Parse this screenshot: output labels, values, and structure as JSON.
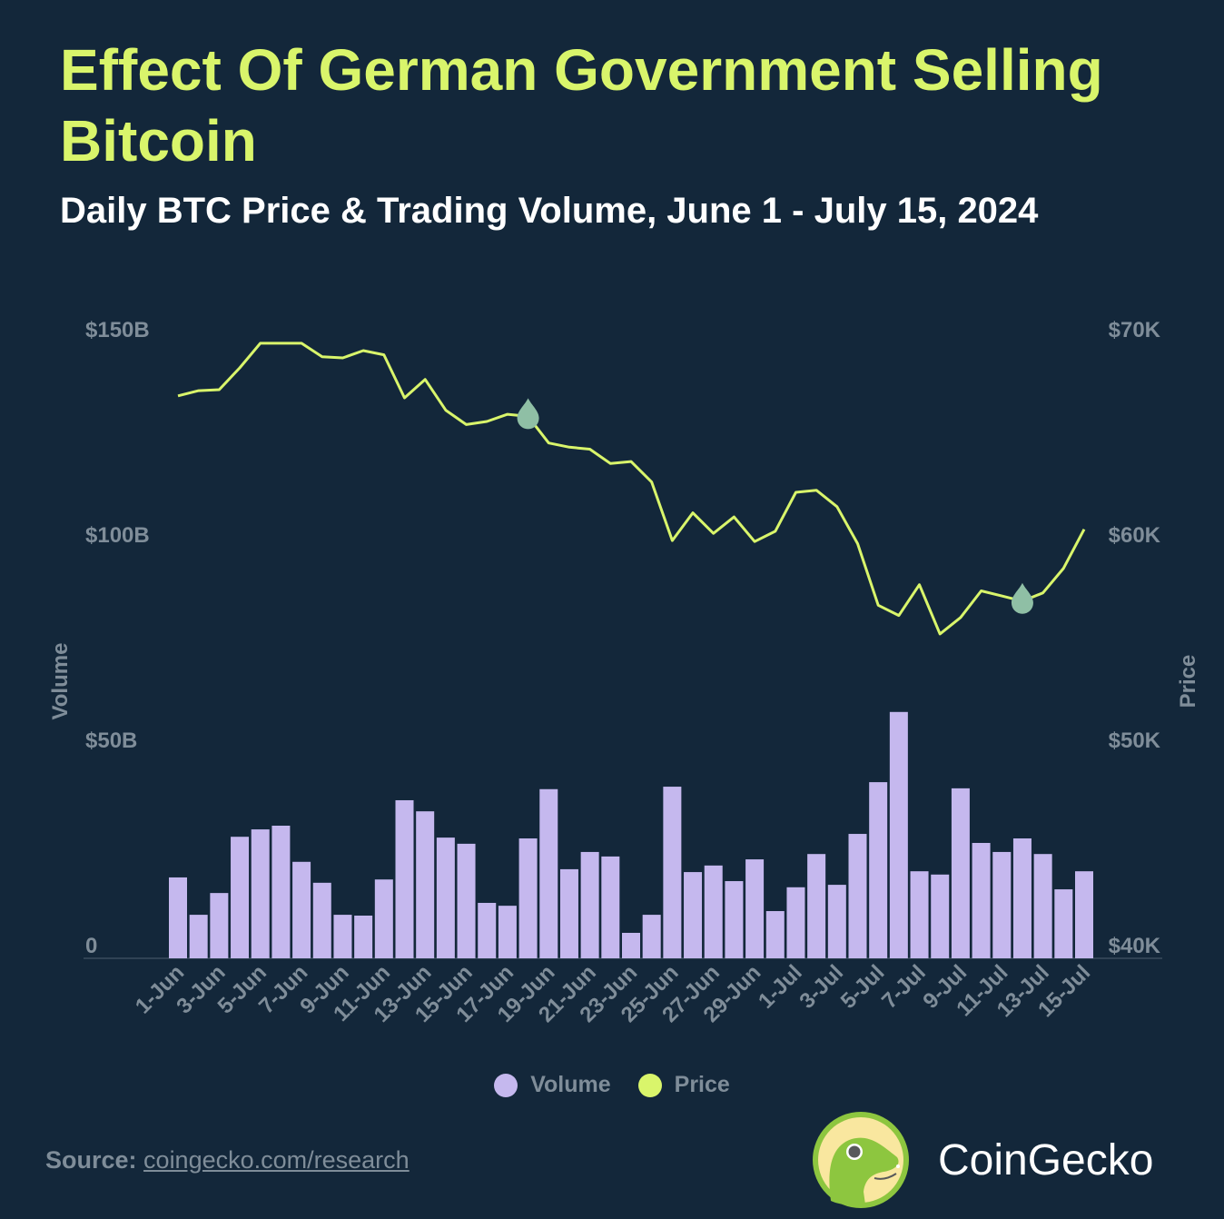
{
  "header": {
    "title": "Effect Of German Government Selling Bitcoin",
    "subtitle": "Daily BTC Price & Trading Volume, June 1 - July 15, 2024"
  },
  "chart_data": {
    "type": "bar+line",
    "categories": [
      "1-Jun",
      "2-Jun",
      "3-Jun",
      "4-Jun",
      "5-Jun",
      "6-Jun",
      "7-Jun",
      "8-Jun",
      "9-Jun",
      "10-Jun",
      "11-Jun",
      "12-Jun",
      "13-Jun",
      "14-Jun",
      "15-Jun",
      "16-Jun",
      "17-Jun",
      "18-Jun",
      "19-Jun",
      "20-Jun",
      "21-Jun",
      "22-Jun",
      "23-Jun",
      "24-Jun",
      "25-Jun",
      "26-Jun",
      "27-Jun",
      "28-Jun",
      "29-Jun",
      "30-Jun",
      "1-Jul",
      "2-Jul",
      "3-Jul",
      "4-Jul",
      "5-Jul",
      "6-Jul",
      "7-Jul",
      "8-Jul",
      "9-Jul",
      "10-Jul",
      "11-Jul",
      "12-Jul",
      "13-Jul",
      "14-Jul",
      "15-Jul"
    ],
    "x_tick_labels": [
      "1-Jun",
      "3-Jun",
      "5-Jun",
      "7-Jun",
      "9-Jun",
      "11-Jun",
      "13-Jun",
      "15-Jun",
      "17-Jun",
      "19-Jun",
      "21-Jun",
      "23-Jun",
      "25-Jun",
      "27-Jun",
      "29-Jun",
      "1-Jul",
      "3-Jul",
      "5-Jul",
      "7-Jul",
      "9-Jul",
      "11-Jul",
      "13-Jul",
      "15-Jul"
    ],
    "series": [
      {
        "name": "Volume",
        "type": "bar",
        "axis": "left",
        "color": "#c5b8ee",
        "unit": "B USD",
        "values": [
          19.7,
          10.6,
          15.9,
          29.6,
          31.4,
          32.3,
          23.5,
          18.4,
          10.6,
          10.4,
          19.2,
          38.5,
          35.8,
          29.4,
          27.9,
          13.5,
          12.8,
          29.2,
          41.2,
          21.7,
          25.9,
          24.8,
          6.2,
          10.6,
          41.8,
          21.0,
          22.6,
          18.8,
          24.1,
          11.5,
          17.3,
          25.4,
          17.9,
          30.3,
          42.9,
          60.0,
          21.2,
          20.4,
          41.4,
          28.1,
          25.9,
          29.2,
          25.4,
          16.8,
          21.2
        ]
      },
      {
        "name": "Price",
        "type": "line",
        "axis": "right",
        "color": "#d9f56b",
        "unit": "K USD",
        "values": [
          67.4,
          67.65,
          67.7,
          68.76,
          69.96,
          69.96,
          69.96,
          69.3,
          69.25,
          69.6,
          69.4,
          67.3,
          68.2,
          66.7,
          66.0,
          66.15,
          66.5,
          66.4,
          65.1,
          64.9,
          64.8,
          64.1,
          64.2,
          63.2,
          60.35,
          61.7,
          60.7,
          61.5,
          60.3,
          60.8,
          62.7,
          62.8,
          62.0,
          60.2,
          57.2,
          56.7,
          58.2,
          55.8,
          56.6,
          57.9,
          57.65,
          57.4,
          57.8,
          59.0,
          60.9
        ]
      }
    ],
    "markers": [
      {
        "category": "18-Jun",
        "icon": "drop-icon",
        "color": "#8fbfa5"
      },
      {
        "category": "12-Jul",
        "icon": "drop-icon",
        "color": "#8fbfa5"
      }
    ],
    "y_left": {
      "label": "Volume",
      "ylim": [
        0,
        150
      ],
      "ticks": [
        0,
        50,
        100,
        150
      ],
      "tick_labels": [
        "0",
        "$50B",
        "$100B",
        "$150B"
      ]
    },
    "y_right": {
      "label": "Price",
      "ylim": [
        40,
        70
      ],
      "ticks": [
        40,
        50,
        60,
        70
      ],
      "tick_labels": [
        "$40K",
        "$50K",
        "$60K",
        "$70K"
      ]
    },
    "grid": false,
    "legend_position": "bottom"
  },
  "legend": {
    "volume": "Volume",
    "price": "Price",
    "volume_color": "#c5b8ee",
    "price_color": "#d9f56b"
  },
  "footer": {
    "source_label": "Source:",
    "source_link": "coingecko.com/research",
    "brand": "CoinGecko"
  }
}
